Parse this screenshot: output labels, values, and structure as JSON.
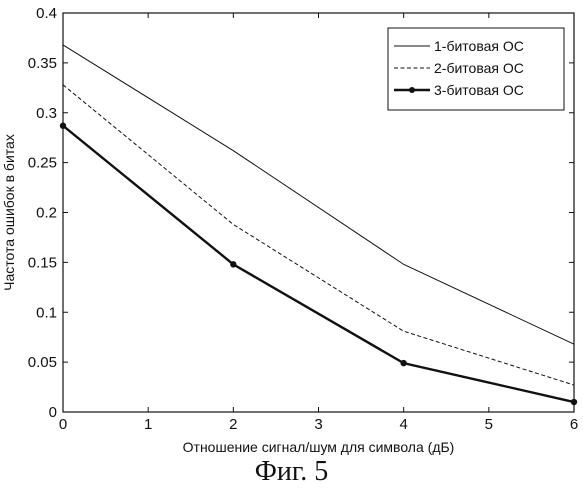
{
  "chart_data": {
    "type": "line",
    "xlabel": "Отношение сигнал/шум для символа (дБ)",
    "ylabel": "Частота ошибок в битах",
    "xlim": [
      0,
      6
    ],
    "ylim": [
      0,
      0.4
    ],
    "xticks": [
      0,
      1,
      2,
      3,
      4,
      5,
      6
    ],
    "yticks": [
      0,
      0.05,
      0.1,
      0.15,
      0.2,
      0.25,
      0.3,
      0.35,
      0.4
    ],
    "xtick_labels": [
      "0",
      "1",
      "2",
      "3",
      "4",
      "5",
      "6"
    ],
    "ytick_labels": [
      "0",
      "0.05",
      "0.1",
      "0.15",
      "0.2",
      "0.25",
      "0.3",
      "0.35",
      "0.4"
    ],
    "grid": false,
    "legend_position": "top-right",
    "series": [
      {
        "name": "1-битовая ОС",
        "style": "solid",
        "color": "#111111",
        "x": [
          0,
          2,
          4,
          6
        ],
        "y": [
          0.368,
          0.262,
          0.148,
          0.068
        ]
      },
      {
        "name": "2-битовая ОС",
        "style": "dashed",
        "color": "#111111",
        "x": [
          0,
          2,
          4,
          6
        ],
        "y": [
          0.328,
          0.188,
          0.081,
          0.027
        ]
      },
      {
        "name": "3-битовая ОС",
        "style": "bold-marker",
        "color": "#111111",
        "x": [
          0,
          2,
          4,
          6
        ],
        "y": [
          0.287,
          0.148,
          0.049,
          0.01
        ]
      }
    ]
  },
  "caption": "Фиг. 5"
}
